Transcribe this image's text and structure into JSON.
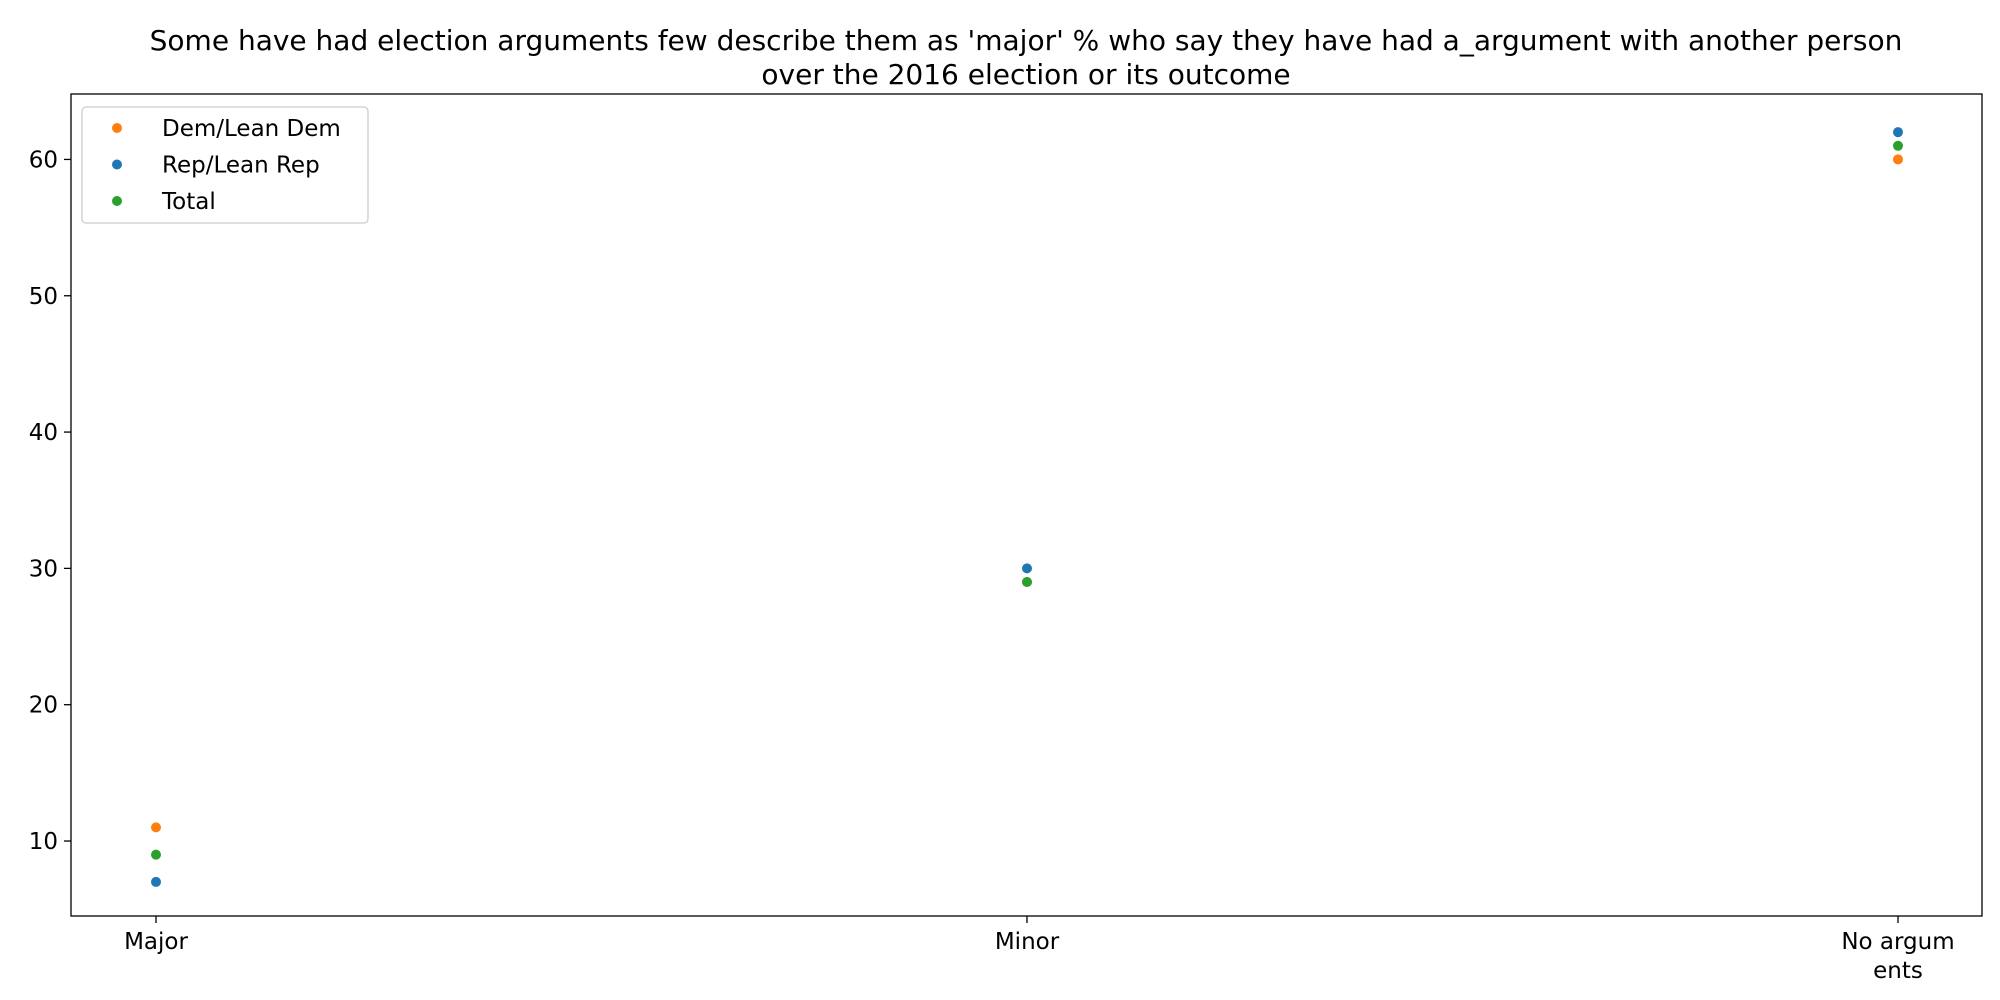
{
  "chart_data": {
    "type": "scatter",
    "title_lines": [
      "Some have had election arguments few describe them as 'major' % who say they have had a_argument with another person",
      "over the 2016 election or its outcome"
    ],
    "xlabel": "",
    "ylabel": "",
    "categories": [
      "Major",
      "Minor",
      "No argum\nents"
    ],
    "ylim": [
      4.5,
      64.8
    ],
    "yticks": [
      10,
      20,
      30,
      40,
      50,
      60
    ],
    "grid": false,
    "legend_position": "top-left",
    "series": [
      {
        "name": "Dem/Lean Dem",
        "color": "#ff7f0e",
        "values": [
          11,
          29,
          60
        ]
      },
      {
        "name": "Rep/Lean Rep",
        "color": "#1f77b4",
        "values": [
          7,
          30,
          62
        ]
      },
      {
        "name": "Total",
        "color": "#2ca02c",
        "values": [
          9,
          29,
          61
        ]
      }
    ]
  }
}
